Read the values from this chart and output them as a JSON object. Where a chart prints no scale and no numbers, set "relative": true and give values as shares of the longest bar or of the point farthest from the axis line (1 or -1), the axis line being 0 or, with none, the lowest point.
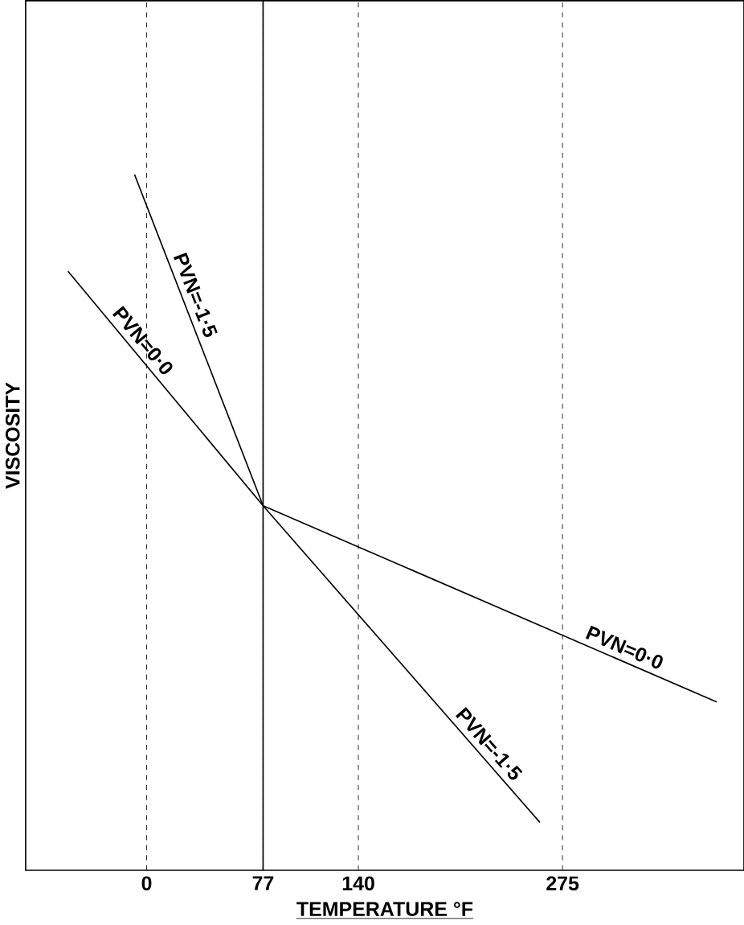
{
  "chart_data": {
    "type": "line",
    "xlabel": "TEMPERATURE °F",
    "ylabel": "VISCOSITY",
    "relative": true,
    "x": [
      -52,
      77,
      377
    ],
    "series": [
      {
        "name": "PVN=0·0",
        "color": "#000000",
        "values": [
          0.861,
          0.524,
          0.242
        ]
      },
      {
        "name": "PVN=-1·5",
        "color": "#000000",
        "values": [
          1,
          0.524,
          0.069
        ],
        "x": [
          -8,
          77,
          260
        ]
      }
    ],
    "xlim": [
      -80,
      395
    ],
    "xticks": [
      0,
      77,
      140,
      275
    ],
    "grid": "x",
    "line_style": "solid",
    "ref_lines": [
      {
        "axis": "x",
        "value": 77,
        "line_style": "solid",
        "color": "#000000"
      }
    ]
  }
}
